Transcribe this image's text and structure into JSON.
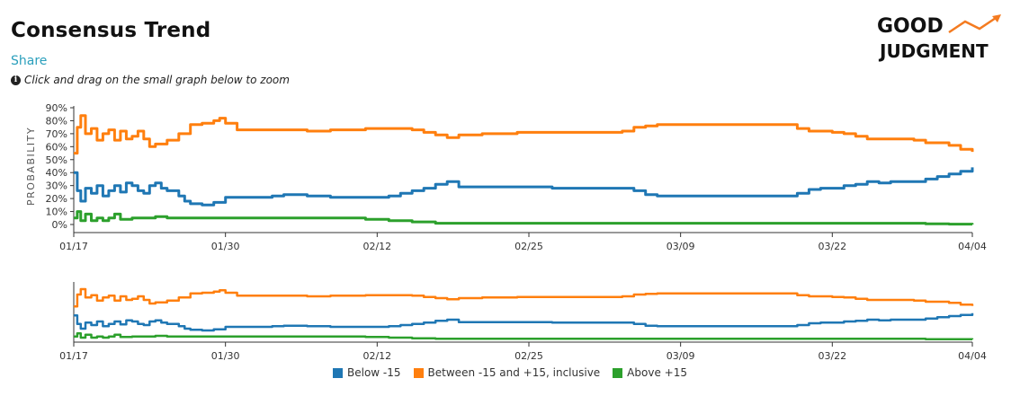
{
  "header": {
    "title": "Consensus Trend",
    "share_label": "Share",
    "hint": "Click and drag on the small graph below to zoom"
  },
  "logo": {
    "line1": "GOOD",
    "line2": "JUDGMENT",
    "accent": "#f47b20"
  },
  "colors": {
    "below": "#1f77b4",
    "between": "#ff7f0e",
    "above": "#2ca02c"
  },
  "chart_data": {
    "type": "line",
    "ylabel": "PROBABILITY",
    "ylim": [
      0,
      90
    ],
    "yticks": [
      "0%",
      "10%",
      "20%",
      "30%",
      "40%",
      "50%",
      "60%",
      "70%",
      "80%",
      "90%"
    ],
    "xlim": [
      0,
      77
    ],
    "xtick_positions": [
      0,
      13,
      26,
      39,
      52,
      65,
      77
    ],
    "xticks": [
      "01/17",
      "01/30",
      "02/12",
      "02/25",
      "03/09",
      "03/22",
      "04/04"
    ],
    "legend_position": "bottom",
    "series": [
      {
        "name": "Below -15",
        "color": "#1f77b4",
        "points": [
          [
            0,
            40
          ],
          [
            0.3,
            26
          ],
          [
            0.6,
            18
          ],
          [
            1,
            28
          ],
          [
            1.5,
            24
          ],
          [
            2,
            30
          ],
          [
            2.5,
            22
          ],
          [
            3,
            26
          ],
          [
            3.5,
            30
          ],
          [
            4,
            25
          ],
          [
            4.5,
            32
          ],
          [
            5,
            30
          ],
          [
            5.5,
            26
          ],
          [
            6,
            24
          ],
          [
            6.5,
            30
          ],
          [
            7,
            32
          ],
          [
            7.5,
            28
          ],
          [
            8,
            26
          ],
          [
            9,
            22
          ],
          [
            9.5,
            18
          ],
          [
            10,
            16
          ],
          [
            11,
            15
          ],
          [
            12,
            17
          ],
          [
            13,
            21
          ],
          [
            15,
            21
          ],
          [
            17,
            22
          ],
          [
            18,
            23
          ],
          [
            20,
            22
          ],
          [
            22,
            21
          ],
          [
            25,
            21
          ],
          [
            27,
            22
          ],
          [
            28,
            24
          ],
          [
            29,
            26
          ],
          [
            30,
            28
          ],
          [
            31,
            31
          ],
          [
            32,
            33
          ],
          [
            33,
            29
          ],
          [
            34,
            29
          ],
          [
            38,
            29
          ],
          [
            41,
            28
          ],
          [
            47,
            28
          ],
          [
            48,
            26
          ],
          [
            49,
            23
          ],
          [
            50,
            22
          ],
          [
            55,
            22
          ],
          [
            61,
            22
          ],
          [
            62,
            24
          ],
          [
            63,
            27
          ],
          [
            64,
            28
          ],
          [
            66,
            30
          ],
          [
            67,
            31
          ],
          [
            68,
            33
          ],
          [
            69,
            32
          ],
          [
            70,
            33
          ],
          [
            72,
            33
          ],
          [
            73,
            35
          ],
          [
            74,
            37
          ],
          [
            75,
            39
          ],
          [
            76,
            41
          ],
          [
            77,
            44
          ]
        ]
      },
      {
        "name": "Between -15 and +15, inclusive",
        "color": "#ff7f0e",
        "points": [
          [
            0,
            55
          ],
          [
            0.3,
            75
          ],
          [
            0.6,
            84
          ],
          [
            1,
            70
          ],
          [
            1.5,
            74
          ],
          [
            2,
            65
          ],
          [
            2.5,
            70
          ],
          [
            3,
            73
          ],
          [
            3.5,
            65
          ],
          [
            4,
            72
          ],
          [
            4.5,
            66
          ],
          [
            5,
            68
          ],
          [
            5.5,
            72
          ],
          [
            6,
            66
          ],
          [
            6.5,
            60
          ],
          [
            7,
            62
          ],
          [
            8,
            65
          ],
          [
            9,
            70
          ],
          [
            10,
            77
          ],
          [
            11,
            78
          ],
          [
            12,
            80
          ],
          [
            12.5,
            82
          ],
          [
            13,
            78
          ],
          [
            14,
            73
          ],
          [
            16,
            73
          ],
          [
            18,
            73
          ],
          [
            20,
            72
          ],
          [
            22,
            73
          ],
          [
            25,
            74
          ],
          [
            27,
            74
          ],
          [
            29,
            73
          ],
          [
            30,
            71
          ],
          [
            31,
            69
          ],
          [
            32,
            67
          ],
          [
            33,
            69
          ],
          [
            35,
            70
          ],
          [
            36,
            70
          ],
          [
            38,
            71
          ],
          [
            40,
            71
          ],
          [
            45,
            71
          ],
          [
            47,
            72
          ],
          [
            48,
            75
          ],
          [
            49,
            76
          ],
          [
            50,
            77
          ],
          [
            55,
            77
          ],
          [
            61,
            77
          ],
          [
            62,
            74
          ],
          [
            63,
            72
          ],
          [
            65,
            71
          ],
          [
            66,
            70
          ],
          [
            67,
            68
          ],
          [
            68,
            66
          ],
          [
            70,
            66
          ],
          [
            72,
            65
          ],
          [
            73,
            63
          ],
          [
            75,
            61
          ],
          [
            76,
            58
          ],
          [
            77,
            56
          ]
        ]
      },
      {
        "name": "Above +15",
        "color": "#2ca02c",
        "points": [
          [
            0,
            5
          ],
          [
            0.3,
            10
          ],
          [
            0.6,
            3
          ],
          [
            1,
            8
          ],
          [
            1.5,
            3
          ],
          [
            2,
            5
          ],
          [
            2.5,
            3
          ],
          [
            3,
            5
          ],
          [
            3.5,
            8
          ],
          [
            4,
            4
          ],
          [
            5,
            5
          ],
          [
            6,
            5
          ],
          [
            7,
            6
          ],
          [
            8,
            5
          ],
          [
            10,
            5
          ],
          [
            13,
            5
          ],
          [
            20,
            5
          ],
          [
            22,
            5
          ],
          [
            25,
            4
          ],
          [
            27,
            3
          ],
          [
            29,
            2
          ],
          [
            31,
            1
          ],
          [
            40,
            1
          ],
          [
            50,
            1
          ],
          [
            61,
            1
          ],
          [
            62,
            1
          ],
          [
            70,
            1
          ],
          [
            72,
            1
          ],
          [
            73,
            0.5
          ],
          [
            75,
            0.3
          ],
          [
            77,
            0
          ]
        ]
      }
    ]
  }
}
